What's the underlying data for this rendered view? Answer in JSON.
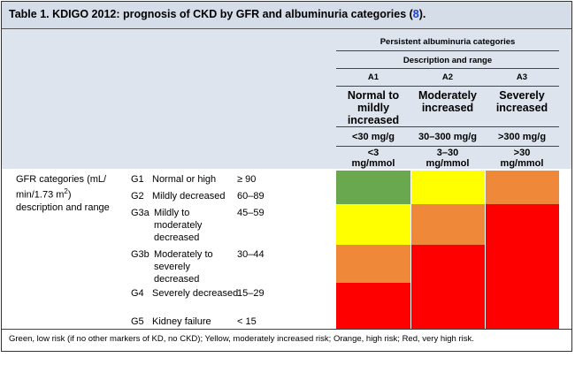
{
  "title": {
    "text": "Table 1. KDIGO 2012: prognosis of CKD by GFR and albuminuria categories (",
    "ref": "8",
    "end": ")."
  },
  "header": {
    "group": "Persistent albuminuria categories",
    "subgroup": "Description and range",
    "codes": [
      "A1",
      "A2",
      "A3"
    ],
    "descriptions": [
      "Normal to mildly increased",
      "Moderately increased",
      "Severely increased"
    ],
    "mg_g": [
      "<30 mg/g",
      "30–300 mg/g",
      ">300 mg/g"
    ],
    "mg_mmol": [
      "<3 mg/mmol",
      "3–30 mg/mmol",
      ">30 mg/mmol"
    ]
  },
  "gfr_label": {
    "before": "GFR categories (mL/ min/1.73 m",
    "sup": "2",
    "after": ") description and range"
  },
  "rows": [
    {
      "code": "G1",
      "description": "Normal or high",
      "range": "≥ 90",
      "colors": [
        "#6aa84f",
        "#ffff00",
        "#f0883a"
      ]
    },
    {
      "code": "G2",
      "description": "Mildly decreased",
      "range": "60–89",
      "colors": [
        "#6aa84f",
        "#ffff00",
        "#f0883a"
      ]
    },
    {
      "code": "G3a",
      "description": "Mildly to moderately decreased",
      "range": "45–59",
      "colors": [
        "#ffff00",
        "#f0883a",
        "#ff0000"
      ]
    },
    {
      "code": "G3b",
      "description": "Moderately to severely decreased",
      "range": "30–44",
      "colors": [
        "#f0883a",
        "#ff0000",
        "#ff0000"
      ]
    },
    {
      "code": "G4",
      "description": "Severely decreased",
      "range": "15–29",
      "colors": [
        "#ff0000",
        "#ff0000",
        "#ff0000"
      ]
    },
    {
      "code": "G5",
      "description": "Kidney failure",
      "range": "< 15",
      "colors": [
        "#ff0000",
        "#ff0000",
        "#ff0000"
      ]
    }
  ],
  "footer": "Green, low risk (if no other markers of KD, no CKD); Yellow, moderately increased risk; Orange, high risk; Red, very high risk."
}
